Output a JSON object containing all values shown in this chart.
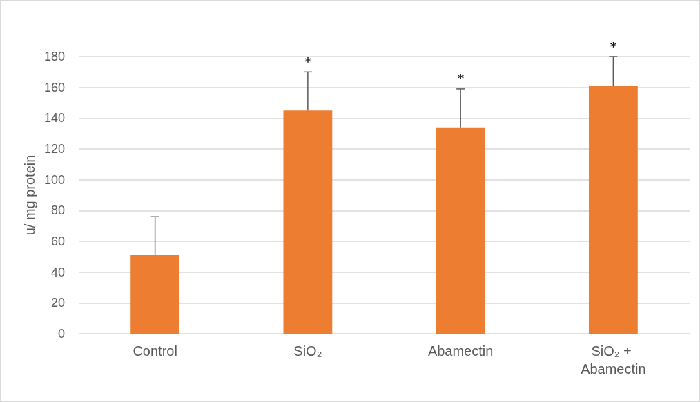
{
  "chart_data": {
    "type": "bar",
    "ylabel": "u/ mg protein",
    "categories": [
      "Control",
      "SiO₂",
      "Abamectin",
      "SiO₂ + Abamectin"
    ],
    "values": [
      51,
      145,
      134,
      161
    ],
    "errors": [
      25,
      25,
      25,
      19
    ],
    "color": "#ed7d31",
    "ylim": [
      0,
      180
    ],
    "yticks": [
      0,
      20,
      40,
      60,
      80,
      100,
      120,
      140,
      160,
      180
    ],
    "grid": "y",
    "annotations": [
      {
        "text": "*",
        "x": "SiO₂",
        "y": 170
      },
      {
        "text": "*",
        "x": "Abamectin",
        "y": 159
      },
      {
        "text": "*",
        "x": "SiO₂ + Abamectin",
        "y": 180
      }
    ]
  }
}
